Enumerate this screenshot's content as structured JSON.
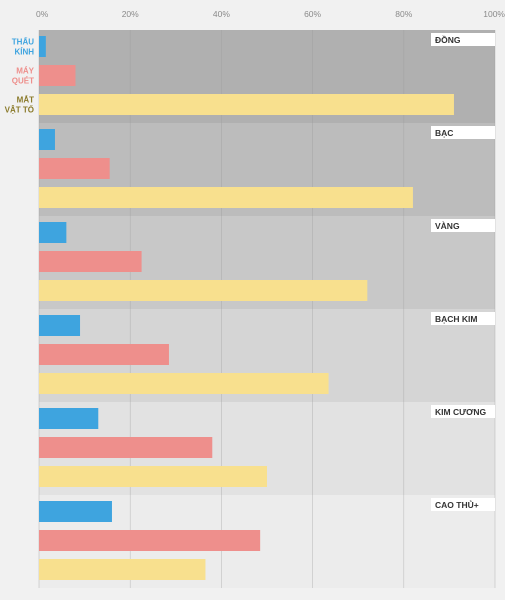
{
  "chart_data": {
    "type": "bar",
    "orientation": "horizontal",
    "x_ticks": [
      "0%",
      "20%",
      "40%",
      "60%",
      "80%",
      "100%"
    ],
    "xlim": [
      0,
      100
    ],
    "grid": true,
    "categories": [
      "ĐỒNG",
      "BẠC",
      "VÀNG",
      "BẠCH KIM",
      "KIM CƯƠNG",
      "CAO THỦ+"
    ],
    "category_shades": [
      "#b0b0b0",
      "#bcbcbc",
      "#c8c8c8",
      "#d5d5d5",
      "#e2e2e2",
      "#ececec"
    ],
    "series": [
      {
        "name": "THẤU KÍNH",
        "label_lines": [
          "THẤU",
          "KÍNH"
        ],
        "color": "#3ea4df",
        "label_color": "#3ea4df",
        "values": [
          1.5,
          3.5,
          6,
          9,
          13,
          16
        ]
      },
      {
        "name": "MÁY QUÉT",
        "label_lines": [
          "MÁY",
          "QUÉT"
        ],
        "color": "#ee8f8c",
        "label_color": "#ee8f8c",
        "values": [
          8,
          15.5,
          22.5,
          28.5,
          38,
          48.5
        ]
      },
      {
        "name": "MẮT VẬT TỔ",
        "label_lines": [
          "MẮT",
          "VẬT TỔ"
        ],
        "color": "#f8e08e",
        "label_color": "#8a7a2a",
        "values": [
          91,
          82,
          72,
          63.5,
          50,
          36.5
        ]
      }
    ],
    "legend_placement": "left, beside first group"
  }
}
